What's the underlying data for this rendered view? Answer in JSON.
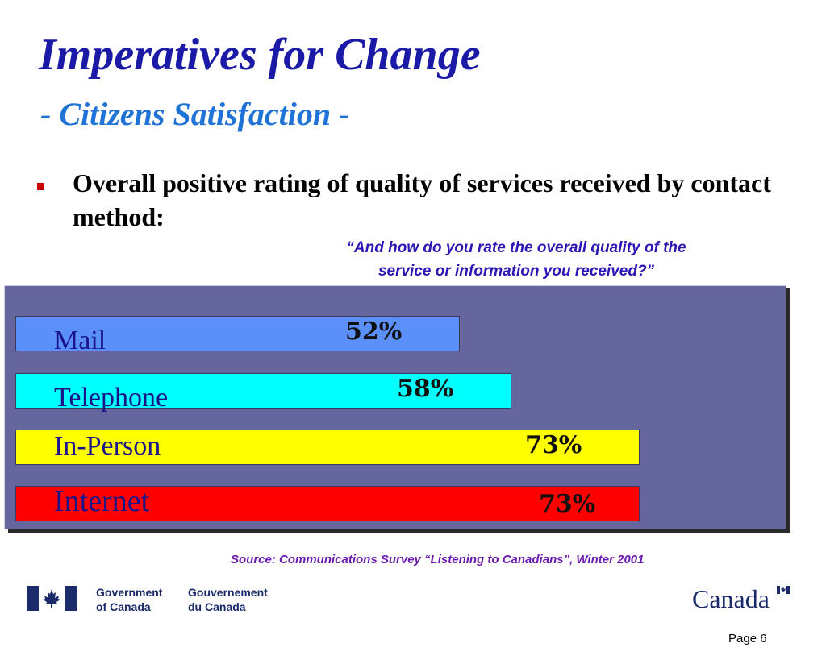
{
  "title": "Imperatives for Change",
  "subtitle": "- Citizens Satisfaction -",
  "bullet": "Overall positive rating of quality of services received by contact method:",
  "question_line1": "“And how do you rate the overall quality of the",
  "question_line2": "service or information you received?”",
  "chart_data": {
    "type": "bar",
    "orientation": "horizontal",
    "categories": [
      "Mail",
      "Telephone",
      "In-Person",
      "Internet"
    ],
    "values": [
      52,
      58,
      73,
      73
    ],
    "value_labels": [
      "52%",
      "58%",
      "73%",
      "73%"
    ],
    "colors": [
      "#5b8ff9",
      "#00ffff",
      "#ffff00",
      "#ff0000"
    ],
    "panel_color": "#66669e",
    "xlim": [
      0,
      100
    ],
    "grid": false,
    "legend": "none"
  },
  "source": "Source: Communications Survey “Listening to Canadians”, Winter 2001",
  "footer": {
    "gov_en_line1": "Government",
    "gov_en_line2": "of Canada",
    "gov_fr_line1": "Gouvernement",
    "gov_fr_line2": "du Canada",
    "wordmark": "Canada",
    "page": "Page 6"
  }
}
